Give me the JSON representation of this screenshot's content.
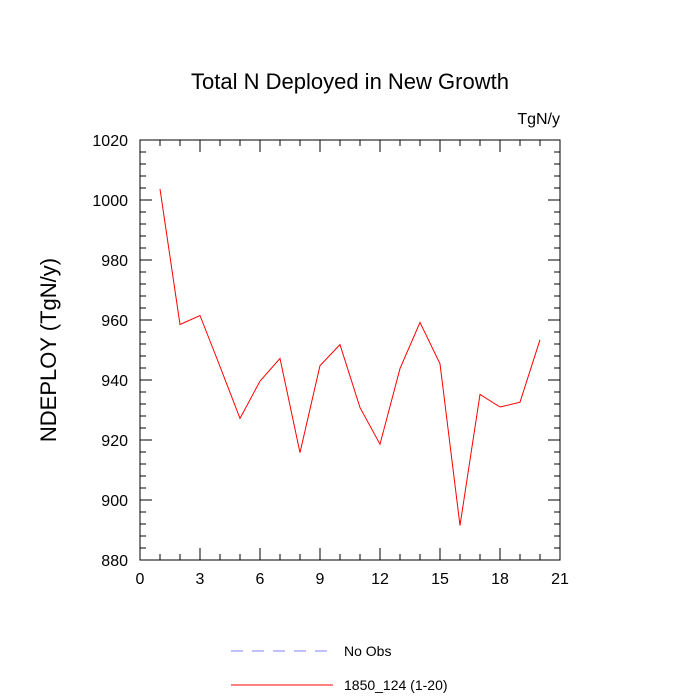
{
  "chart_data": {
    "type": "line",
    "title": "Total N Deployed in New Growth",
    "units_label": "TgN/y",
    "ylabel": "NDEPLOY  (TgN/y)",
    "xlabel": "",
    "xlim": [
      0,
      21
    ],
    "ylim": [
      880,
      1020
    ],
    "x_ticks": [
      0,
      3,
      6,
      9,
      12,
      15,
      18,
      21
    ],
    "x_tick_labels": [
      "0",
      "3",
      "6",
      "9",
      "12",
      "15",
      "18",
      "21"
    ],
    "y_ticks": [
      880,
      900,
      920,
      940,
      960,
      980,
      1000,
      1020
    ],
    "y_tick_labels": [
      "880",
      "900",
      "920",
      "940",
      "960",
      "980",
      "1000",
      "1020"
    ],
    "series": [
      {
        "name": "1850_124 (1-20)",
        "color": "#ff0000",
        "style": "solid",
        "x": [
          1,
          2,
          3,
          4,
          5,
          6,
          7,
          8,
          9,
          10,
          11,
          12,
          13,
          14,
          15,
          16,
          17,
          18,
          19,
          20
        ],
        "y": [
          1003.7,
          958.5,
          961.5,
          944.5,
          927.2,
          939.6,
          947.2,
          915.8,
          944.8,
          951.8,
          930.8,
          918.6,
          943.8,
          959.2,
          945.4,
          891.5,
          935.2,
          931.0,
          932.6,
          953.4
        ]
      }
    ],
    "legend": [
      {
        "label": "No Obs",
        "color": "#8080ff",
        "style": "dashed"
      },
      {
        "label": "1850_124 (1-20)",
        "color": "#ff0000",
        "style": "solid"
      }
    ],
    "legend_position": "bottom-center",
    "grid": false
  }
}
